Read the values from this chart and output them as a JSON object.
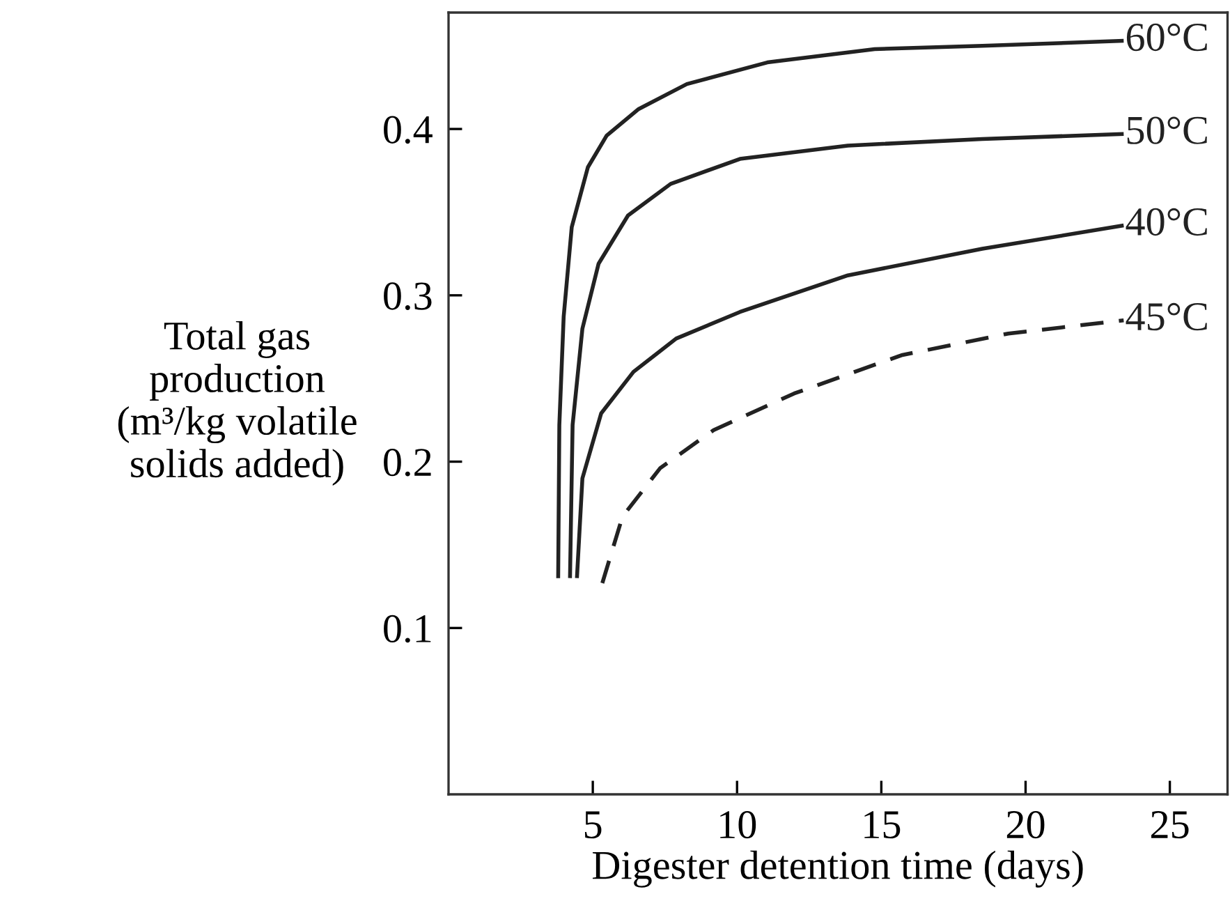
{
  "chart_data": {
    "type": "line",
    "xlabel": "Digester detention time (days)",
    "ylabel": "Total gas\nproduction\n(m³/kg volatile\nsolids added)",
    "xlim": [
      0,
      27
    ],
    "ylim": [
      0,
      0.47
    ],
    "xticks": [
      5,
      10,
      15,
      20,
      25
    ],
    "yticks": [
      0.1,
      0.2,
      0.3,
      0.4
    ],
    "grid": false,
    "legend": false,
    "marker": "none",
    "series": [
      {
        "name": "60°C",
        "color": "#222222",
        "line_style": "solid",
        "x": [
          3.8,
          3.84,
          3.99,
          4.27,
          4.83,
          5.48,
          6.59,
          8.26,
          11.05,
          14.77,
          18.5,
          23.4
        ],
        "values": [
          0.13,
          0.222,
          0.287,
          0.341,
          0.377,
          0.396,
          0.412,
          0.427,
          0.44,
          0.448,
          0.45,
          0.453
        ]
      },
      {
        "name": "50°C",
        "color": "#222222",
        "line_style": "solid",
        "x": [
          4.21,
          4.3,
          4.64,
          5.2,
          6.22,
          7.7,
          10.1,
          13.84,
          18.5,
          23.4
        ],
        "values": [
          0.13,
          0.222,
          0.28,
          0.319,
          0.348,
          0.367,
          0.382,
          0.39,
          0.394,
          0.397
        ]
      },
      {
        "name": "40°C",
        "color": "#222222",
        "line_style": "solid",
        "x": [
          4.45,
          4.64,
          5.29,
          6.41,
          7.89,
          10.1,
          13.84,
          18.5,
          23.4
        ],
        "values": [
          0.13,
          0.19,
          0.229,
          0.254,
          0.274,
          0.29,
          0.312,
          0.328,
          0.342
        ]
      },
      {
        "name": "45°C",
        "color": "#222222",
        "line_style": "dashed",
        "x": [
          5.33,
          6.03,
          7.33,
          9.19,
          11.98,
          15.7,
          19.4,
          23.4
        ],
        "values": [
          0.127,
          0.167,
          0.196,
          0.219,
          0.241,
          0.264,
          0.277,
          0.285
        ]
      }
    ]
  }
}
